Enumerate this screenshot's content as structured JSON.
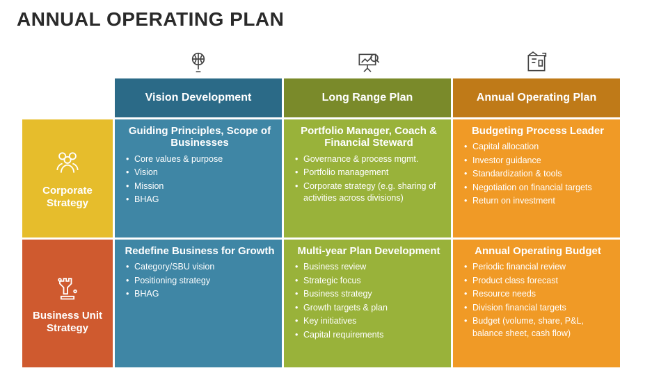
{
  "title": "ANNUAL OPERATING PLAN",
  "colors": {
    "col1_head": "#2b6a87",
    "col2_head": "#7a8a2a",
    "col3_head": "#bf7a18",
    "row1_head": "#e6bd2c",
    "row2_head": "#cf5a2f",
    "cell_blue": "#3f86a5",
    "cell_green": "#99b23a",
    "cell_orange": "#f09a26"
  },
  "columns": [
    {
      "label": "Vision Development"
    },
    {
      "label": "Long Range Plan"
    },
    {
      "label": "Annual Operating Plan"
    }
  ],
  "rows": [
    {
      "label": "Corporate Strategy"
    },
    {
      "label": "Business Unit Strategy"
    }
  ],
  "cells": {
    "r0c0": {
      "title": "Guiding Principles, Scope of Businesses",
      "items": [
        "Core values & purpose",
        "Vision",
        " Mission",
        "BHAG"
      ]
    },
    "r0c1": {
      "title": "Portfolio Manager, Coach & Financial Steward",
      "items": [
        "Governance & process mgmt.",
        "Portfolio management",
        "Corporate strategy (e.g. sharing of activities across divisions)"
      ]
    },
    "r0c2": {
      "title": "Budgeting Process Leader",
      "items": [
        "Capital allocation",
        "Investor guidance",
        "Standardization & tools",
        "Negotiation on financial targets",
        "Return on investment"
      ]
    },
    "r1c0": {
      "title": "Redefine Business for Growth",
      "items": [
        "Category/SBU vision",
        "Positioning strategy",
        "BHAG"
      ]
    },
    "r1c1": {
      "title": "Multi-year Plan Development",
      "items": [
        "Business review",
        "Strategic focus",
        "Business strategy",
        "Growth targets & plan",
        "Key initiatives",
        " Capital requirements"
      ]
    },
    "r1c2": {
      "title": "Annual Operating Budget",
      "items": [
        "Periodic financial review",
        "Product class forecast",
        " Resource needs",
        "Division financial targets",
        "Budget (volume, share, P&L, balance sheet, cash flow)"
      ]
    }
  }
}
